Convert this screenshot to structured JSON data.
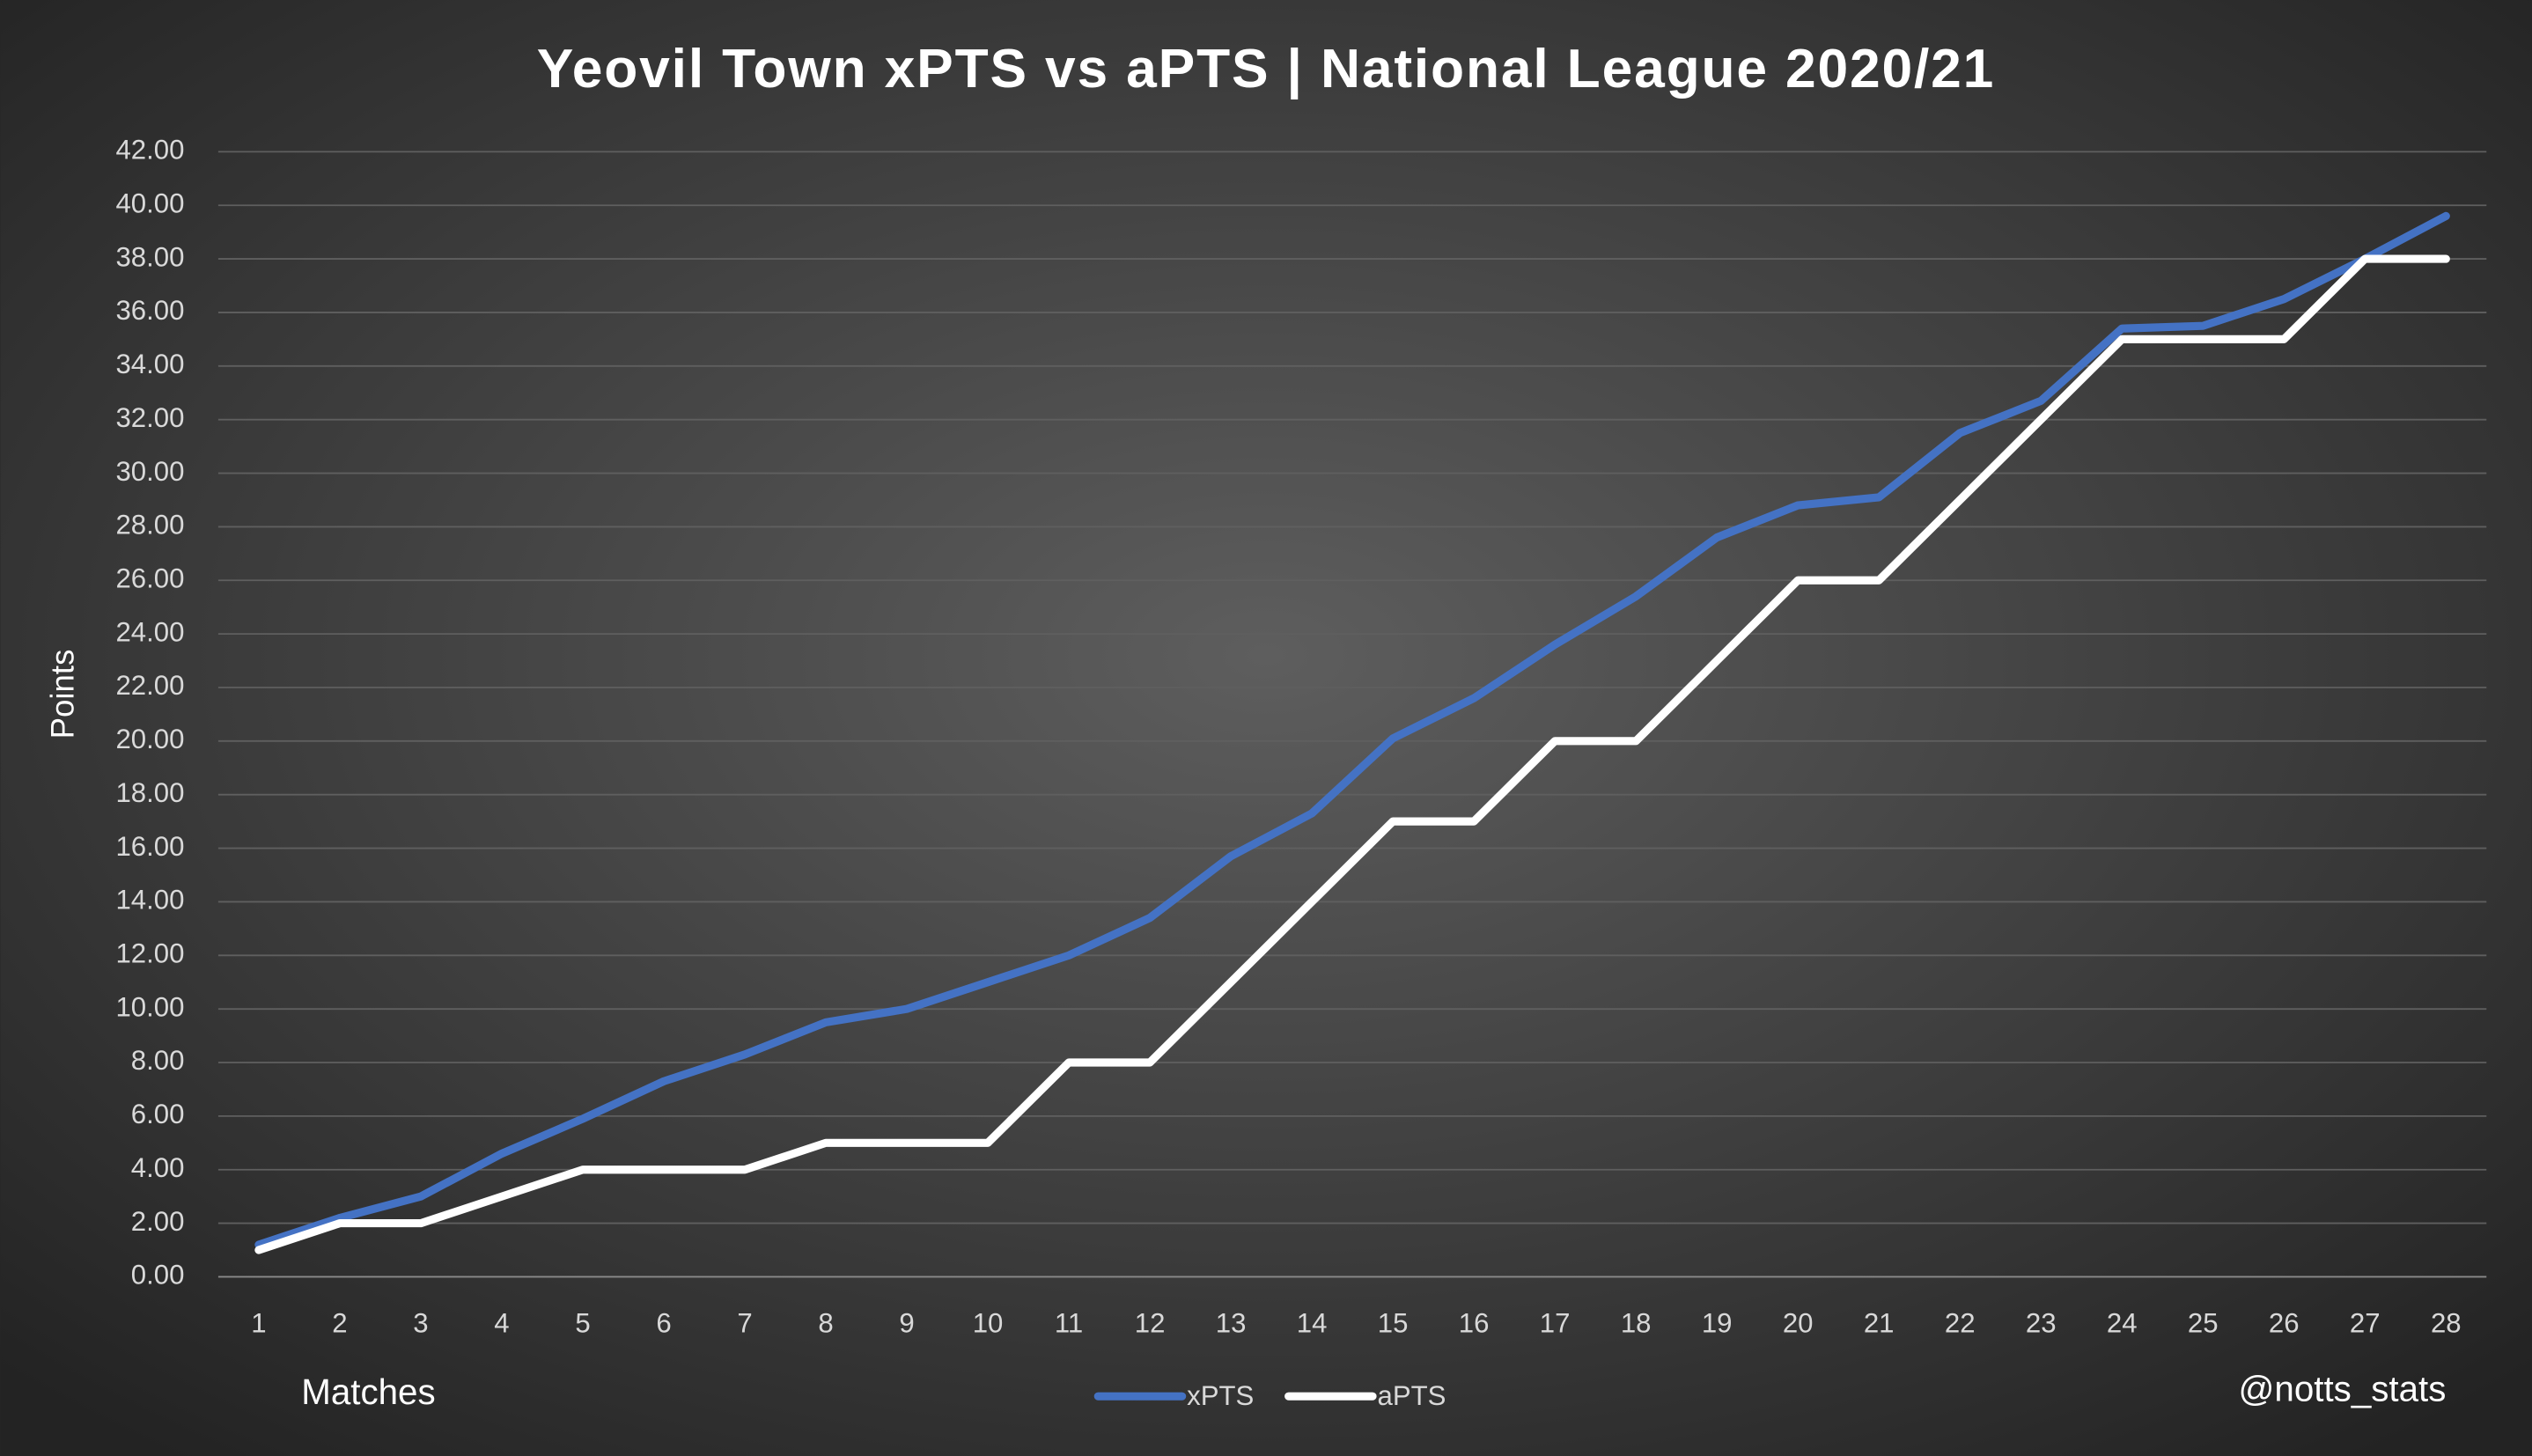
{
  "chart_data": {
    "type": "line",
    "title": "Yeovil Town xPTS vs aPTS | National League 2020/21",
    "x_label": "Matches",
    "y_label": "Points",
    "annotation": "@notts_stats",
    "categories": [
      "1",
      "2",
      "3",
      "4",
      "5",
      "6",
      "7",
      "8",
      "9",
      "10",
      "11",
      "12",
      "13",
      "14",
      "15",
      "16",
      "17",
      "18",
      "19",
      "20",
      "21",
      "22",
      "23",
      "24",
      "25",
      "26",
      "27",
      "28"
    ],
    "series": [
      {
        "name": "xPTS",
        "color": "#4472c4",
        "values": [
          1.2,
          2.2,
          3.0,
          4.6,
          5.9,
          7.3,
          8.3,
          9.5,
          10.0,
          11.0,
          12.0,
          13.4,
          15.7,
          17.3,
          20.1,
          21.6,
          23.6,
          25.4,
          27.6,
          28.8,
          29.1,
          31.5,
          32.7,
          35.4,
          35.5,
          36.5,
          38.0,
          39.6
        ]
      },
      {
        "name": "aPTS",
        "color": "#ffffff",
        "values": [
          1,
          2,
          2,
          3,
          4,
          4,
          4,
          5,
          5,
          5,
          8,
          8,
          11,
          14,
          17,
          17,
          20,
          20,
          23,
          26,
          26,
          29,
          32,
          35,
          35,
          35,
          38,
          38
        ]
      }
    ],
    "ylim": [
      0,
      42
    ],
    "yticks": [
      {
        "value": 0,
        "label": "0.00"
      },
      {
        "value": 2,
        "label": "2.00"
      },
      {
        "value": 4,
        "label": "4.00"
      },
      {
        "value": 6,
        "label": "6.00"
      },
      {
        "value": 8,
        "label": "8.00"
      },
      {
        "value": 10,
        "label": "10.00"
      },
      {
        "value": 12,
        "label": "12.00"
      },
      {
        "value": 14,
        "label": "14.00"
      },
      {
        "value": 16,
        "label": "16.00"
      },
      {
        "value": 18,
        "label": "18.00"
      },
      {
        "value": 20,
        "label": "20.00"
      },
      {
        "value": 22,
        "label": "22.00"
      },
      {
        "value": 24,
        "label": "24.00"
      },
      {
        "value": 26,
        "label": "26.00"
      },
      {
        "value": 28,
        "label": "28.00"
      },
      {
        "value": 30,
        "label": "30.00"
      },
      {
        "value": 32,
        "label": "32.00"
      },
      {
        "value": 34,
        "label": "34.00"
      },
      {
        "value": 36,
        "label": "36.00"
      },
      {
        "value": 38,
        "label": "38.00"
      },
      {
        "value": 40,
        "label": "40.00"
      },
      {
        "value": 42,
        "label": "42.00"
      }
    ],
    "grid": true,
    "legend": "bottom"
  }
}
